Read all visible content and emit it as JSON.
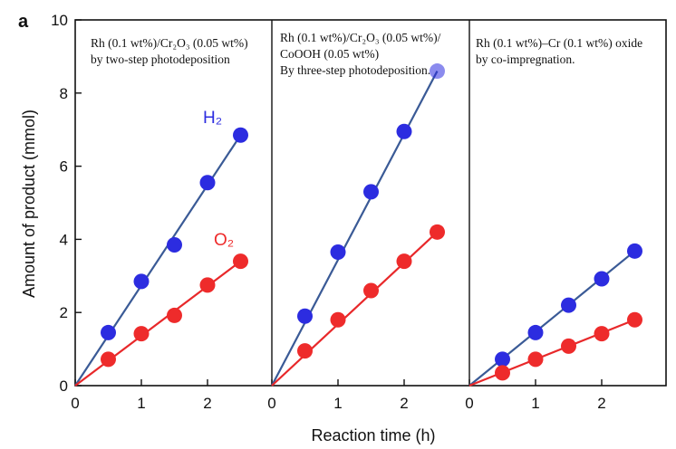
{
  "panel_letter": "a",
  "colors": {
    "h2": "#2c2ce0",
    "o2": "#ee2b2b",
    "h2_line": "#3a5a96",
    "o2_line": "#e8282a"
  },
  "chart_data": {
    "type": "scatter",
    "title": "",
    "xlabel": "Reaction time (h)",
    "ylabel": "Amount of product (mmol)",
    "ylim": [
      0,
      10
    ],
    "yticks": [
      0,
      2,
      4,
      6,
      8,
      10
    ],
    "xticks": [
      0,
      1,
      2
    ],
    "grid": false,
    "legend": "inline labels",
    "panels": [
      {
        "annotation": [
          "Rh (0.1 wt%)/Cr₂O₃ (0.05 wt%)",
          "by two-step photodeposition"
        ],
        "series": [
          {
            "name": "H₂",
            "x": [
              0.5,
              1.0,
              1.5,
              2.0,
              2.5
            ],
            "y": [
              1.45,
              2.85,
              3.85,
              5.55,
              6.85
            ]
          },
          {
            "name": "O₂",
            "x": [
              0.5,
              1.0,
              1.5,
              2.0,
              2.5
            ],
            "y": [
              0.72,
              1.42,
              1.92,
              2.75,
              3.4
            ]
          }
        ]
      },
      {
        "annotation": [
          "Rh (0.1 wt%)/Cr₂O₃ (0.05 wt%)/",
          "CoOOH (0.05 wt%)",
          "By three-step photodeposition."
        ],
        "series": [
          {
            "name": "",
            "x": [
              0.5,
              1.0,
              1.5,
              2.0,
              2.5
            ],
            "y": [
              1.9,
              3.65,
              5.3,
              6.95,
              8.6
            ]
          },
          {
            "name": "",
            "x": [
              0.5,
              1.0,
              1.5,
              2.0,
              2.5
            ],
            "y": [
              0.95,
              1.8,
              2.6,
              3.4,
              4.2
            ]
          }
        ]
      },
      {
        "annotation": [
          "Rh (0.1 wt%)–Cr (0.1 wt%) oxide",
          "by co-impregnation."
        ],
        "series": [
          {
            "name": "",
            "x": [
              0.5,
              1.0,
              1.5,
              2.0,
              2.5
            ],
            "y": [
              0.72,
              1.45,
              2.2,
              2.92,
              3.68
            ]
          },
          {
            "name": "",
            "x": [
              0.5,
              1.0,
              1.5,
              2.0,
              2.5
            ],
            "y": [
              0.35,
              0.72,
              1.08,
              1.42,
              1.8
            ]
          }
        ]
      }
    ]
  }
}
